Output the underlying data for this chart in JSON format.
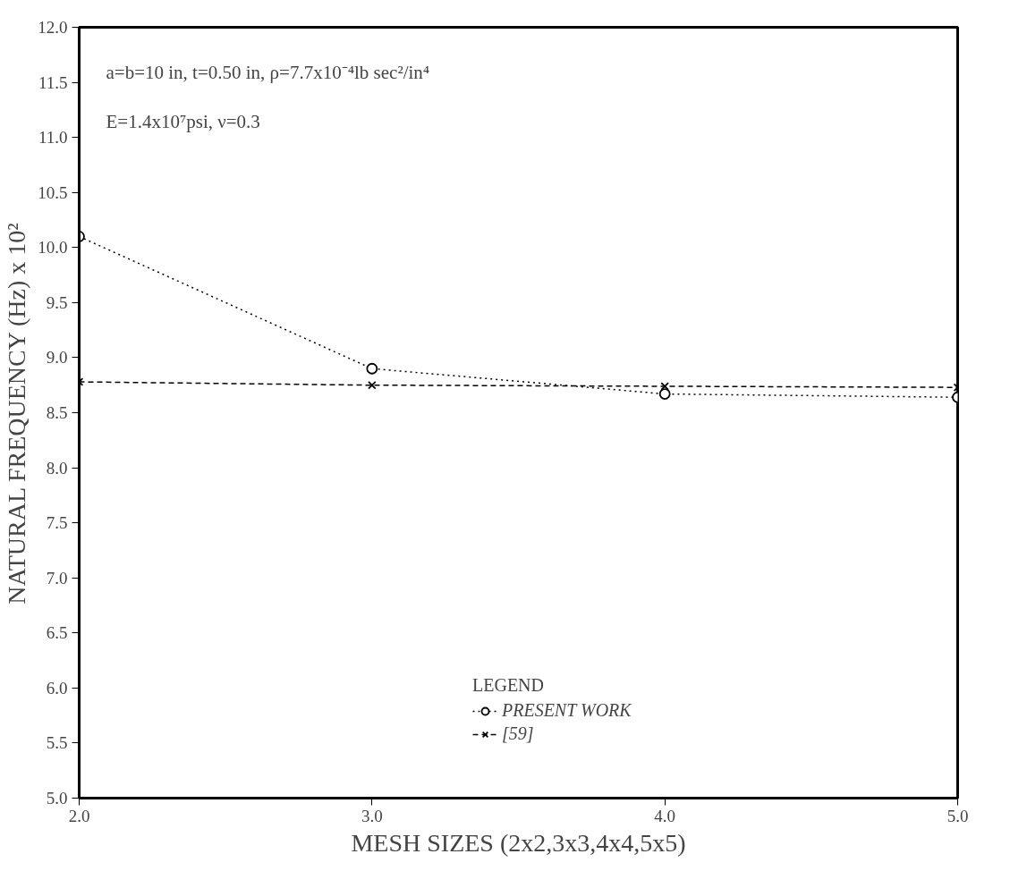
{
  "chart_data": {
    "type": "line",
    "xlabel": "MESH SIZES (2x2,3x3,4x4,5x5)",
    "ylabel": "NATURAL FREQUENCY (Hz) x 10²",
    "legend_title": "LEGEND",
    "legend": "bottom",
    "grid": false,
    "annotations": [
      "a=b=10 in, t=0.50 in, ρ=7.7x10⁻⁴lb sec²/in⁴",
      "E=1.4x10⁷psi, ν=0.3"
    ],
    "x": [
      2,
      3,
      4,
      5
    ],
    "xlim": [
      2,
      5
    ],
    "ylim": [
      5,
      12
    ],
    "xticks": [
      {
        "value": 2,
        "label": "2.0"
      },
      {
        "value": 3,
        "label": "3.0"
      },
      {
        "value": 4,
        "label": "4.0"
      },
      {
        "value": 5,
        "label": "5.0"
      }
    ],
    "yticks": [
      {
        "value": 5,
        "label": "5.0"
      },
      {
        "value": 5.5,
        "label": "5.5"
      },
      {
        "value": 6,
        "label": "6.0"
      },
      {
        "value": 6.5,
        "label": "6.5"
      },
      {
        "value": 7,
        "label": "7.0"
      },
      {
        "value": 7.5,
        "label": "7.5"
      },
      {
        "value": 8,
        "label": "8.0"
      },
      {
        "value": 8.5,
        "label": "8.5"
      },
      {
        "value": 9,
        "label": "9.0"
      },
      {
        "value": 9.5,
        "label": "9.5"
      },
      {
        "value": 10,
        "label": "10.0"
      },
      {
        "value": 10.5,
        "label": "10.5"
      },
      {
        "value": 11,
        "label": "11.0"
      },
      {
        "value": 11.5,
        "label": "11.5"
      },
      {
        "value": 12,
        "label": "12.0"
      }
    ],
    "series": [
      {
        "name": "PRESENT WORK",
        "color": "#000000",
        "values": [
          10.1,
          8.9,
          8.67,
          8.64
        ],
        "marker": "circle",
        "line_style": "dotted"
      },
      {
        "name": "[59]",
        "color": "#000000",
        "values": [
          8.78,
          8.75,
          8.74,
          8.73
        ],
        "marker": "cross",
        "line_style": "dashed"
      }
    ]
  }
}
